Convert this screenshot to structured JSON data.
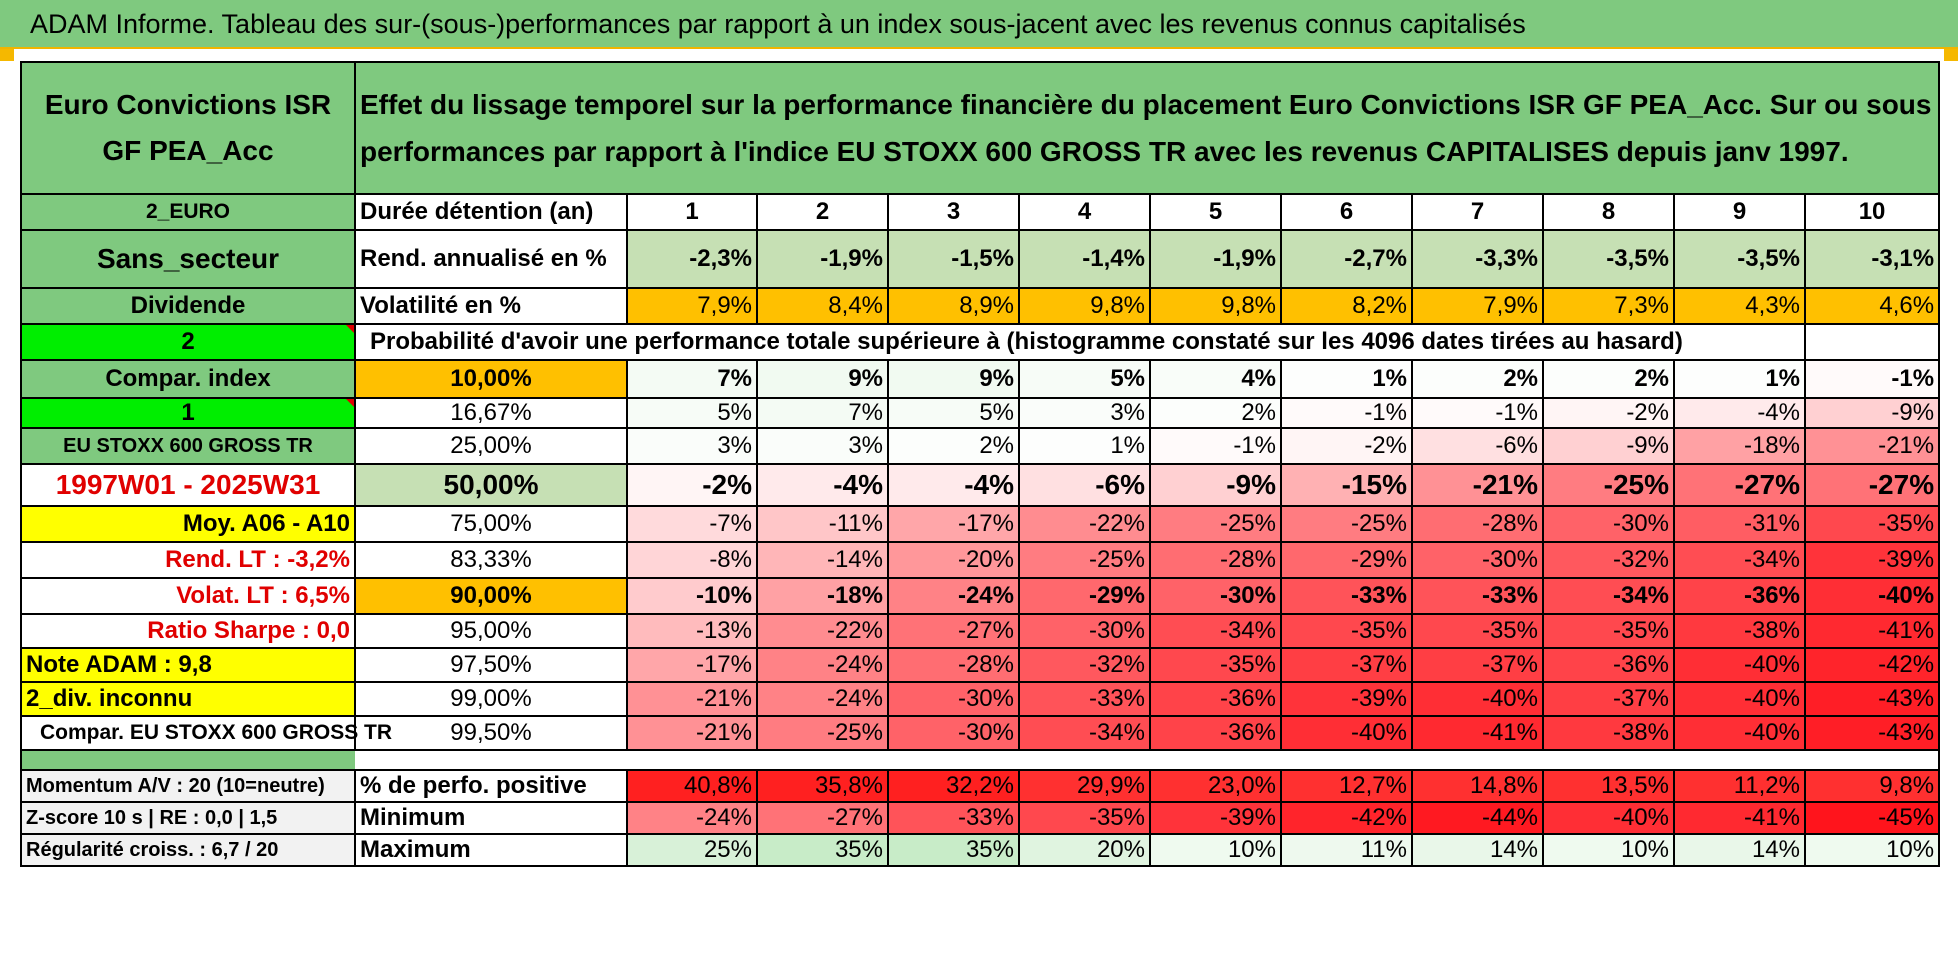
{
  "banner": "ADAM Informe. Tableau des sur-(sous-)performances par rapport à un index sous-jacent avec les revenus connus capitalisés",
  "fund_name": "Euro Convictions ISR GF PEA_Acc",
  "description": "Effet du lissage temporel sur la performance financière du placement Euro Convictions ISR GF PEA_Acc. Sur ou sous performances par rapport à l'indice EU STOXX 600 GROSS TR avec les revenus CAPITALISES depuis janv 1997.",
  "left": {
    "currency": "2_EURO",
    "sector": "Sans_secteur",
    "dividend": "Dividende",
    "n2": "2",
    "compar_index": "Compar. index",
    "n1": "1",
    "index_name": "EU STOXX 600 GROSS TR",
    "period": "1997W01 - 2025W31",
    "moy": "Moy. A06 - A10",
    "rend_lt": "Rend. LT :   -3,2%",
    "volat_lt": "Volat. LT :   6,5%",
    "sharpe": "Ratio Sharpe :    0,0",
    "note_adam": "Note ADAM : 9,8",
    "div_inconnu": "2_div. inconnu",
    "compar_full": "Compar. EU STOXX 600 GROSS TR",
    "momentum": "Momentum A/V : 20 (10=neutre)",
    "zscore": "Z-score 10 s | RE : 0,0 | 1,5",
    "regularite": "Régularité croiss. : 6,7 / 20"
  },
  "labels": {
    "duree": "Durée détention (an)",
    "rend": "Rend. annualisé en %",
    "volat": "Volatilité en %",
    "proba": "Probabilité d'avoir une performance totale supérieure à (histogramme constaté sur les 4096 dates tirées au hasard)",
    "pos": "% de perfo. positive",
    "min": "Minimum",
    "max": "Maximum"
  },
  "years": [
    "1",
    "2",
    "3",
    "4",
    "5",
    "6",
    "7",
    "8",
    "9",
    "10"
  ],
  "rend": [
    "-2,3%",
    "-1,9%",
    "-1,5%",
    "-1,4%",
    "-1,9%",
    "-2,7%",
    "-3,3%",
    "-3,5%",
    "-3,5%",
    "-3,1%"
  ],
  "volat": [
    "7,9%",
    "8,4%",
    "8,9%",
    "9,8%",
    "9,8%",
    "8,2%",
    "7,9%",
    "7,3%",
    "4,3%",
    "4,6%"
  ],
  "proba_rows": [
    {
      "p": "10,00%",
      "v": [
        "7%",
        "9%",
        "9%",
        "5%",
        "4%",
        "1%",
        "2%",
        "2%",
        "1%",
        "-1%"
      ],
      "bold": true,
      "pc": "o"
    },
    {
      "p": "16,67%",
      "v": [
        "5%",
        "7%",
        "5%",
        "3%",
        "2%",
        "-1%",
        "-1%",
        "-2%",
        "-4%",
        "-9%"
      ],
      "bold": false,
      "pc": "w"
    },
    {
      "p": "25,00%",
      "v": [
        "3%",
        "3%",
        "2%",
        "1%",
        "-1%",
        "-2%",
        "-6%",
        "-9%",
        "-18%",
        "-21%"
      ],
      "bold": false,
      "pc": "w"
    },
    {
      "p": "50,00%",
      "v": [
        "-2%",
        "-4%",
        "-4%",
        "-6%",
        "-9%",
        "-15%",
        "-21%",
        "-25%",
        "-27%",
        "-27%"
      ],
      "bold": true,
      "pc": "gl",
      "big": true
    },
    {
      "p": "75,00%",
      "v": [
        "-7%",
        "-11%",
        "-17%",
        "-22%",
        "-25%",
        "-25%",
        "-28%",
        "-30%",
        "-31%",
        "-35%"
      ],
      "bold": false,
      "pc": "w"
    },
    {
      "p": "83,33%",
      "v": [
        "-8%",
        "-14%",
        "-20%",
        "-25%",
        "-28%",
        "-29%",
        "-30%",
        "-32%",
        "-34%",
        "-39%"
      ],
      "bold": false,
      "pc": "w"
    },
    {
      "p": "90,00%",
      "v": [
        "-10%",
        "-18%",
        "-24%",
        "-29%",
        "-30%",
        "-33%",
        "-33%",
        "-34%",
        "-36%",
        "-40%"
      ],
      "bold": true,
      "pc": "o"
    },
    {
      "p": "95,00%",
      "v": [
        "-13%",
        "-22%",
        "-27%",
        "-30%",
        "-34%",
        "-35%",
        "-35%",
        "-35%",
        "-38%",
        "-41%"
      ],
      "bold": false,
      "pc": "w"
    },
    {
      "p": "97,50%",
      "v": [
        "-17%",
        "-24%",
        "-28%",
        "-32%",
        "-35%",
        "-37%",
        "-37%",
        "-36%",
        "-40%",
        "-42%"
      ],
      "bold": false,
      "pc": "w"
    },
    {
      "p": "99,00%",
      "v": [
        "-21%",
        "-24%",
        "-30%",
        "-33%",
        "-36%",
        "-39%",
        "-40%",
        "-37%",
        "-40%",
        "-43%"
      ],
      "bold": false,
      "pc": "w"
    },
    {
      "p": "99,50%",
      "v": [
        "-21%",
        "-25%",
        "-30%",
        "-34%",
        "-36%",
        "-40%",
        "-41%",
        "-38%",
        "-40%",
        "-43%"
      ],
      "bold": false,
      "pc": "w"
    }
  ],
  "pos": [
    "40,8%",
    "35,8%",
    "32,2%",
    "29,9%",
    "23,0%",
    "12,7%",
    "14,8%",
    "13,5%",
    "11,2%",
    "9,8%"
  ],
  "min": [
    "-24%",
    "-27%",
    "-33%",
    "-35%",
    "-39%",
    "-42%",
    "-44%",
    "-40%",
    "-41%",
    "-45%"
  ],
  "max": [
    "25%",
    "35%",
    "35%",
    "20%",
    "10%",
    "11%",
    "14%",
    "10%",
    "14%",
    "10%"
  ],
  "colors": {
    "header_green": "#7fc97f",
    "light_green": "#c6e0b4",
    "bright_green": "#00ee00",
    "yellow": "#ffff00",
    "orange": "#ffc000",
    "label_red": "#e00000"
  }
}
